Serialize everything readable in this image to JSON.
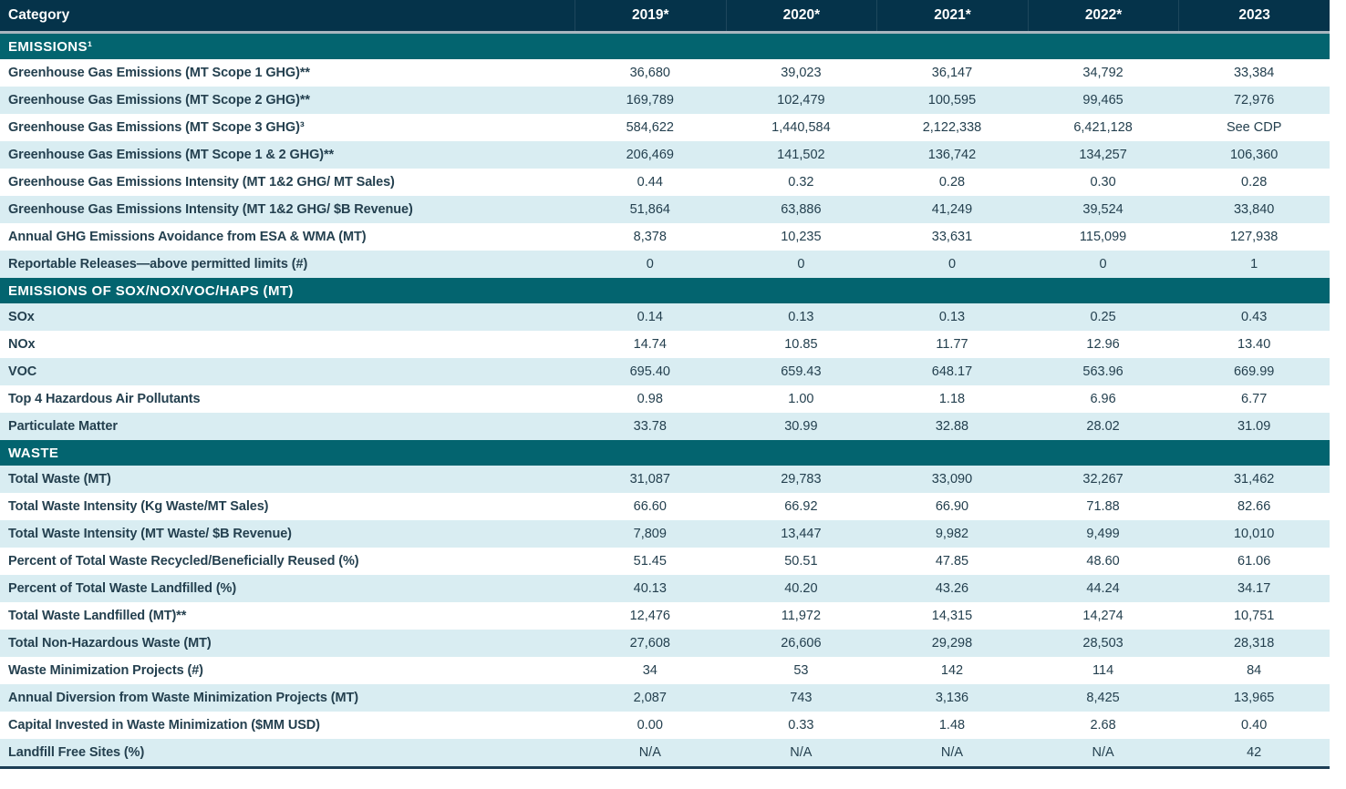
{
  "colors": {
    "header_bg": "#05334a",
    "section_bg": "#03646f",
    "stripe_bg": "#d9edf2",
    "row_text": "#24404f",
    "header_text": "#ffffff",
    "separator": "#a9b6bf",
    "bottom_border": "#1c3e55"
  },
  "table": {
    "header": {
      "category": "Category",
      "years": [
        "2019*",
        "2020*",
        "2021*",
        "2022*",
        "2023"
      ]
    },
    "sections": [
      {
        "title": "EMISSIONS¹",
        "shade_first_row": false,
        "rows": [
          {
            "label": "Greenhouse Gas Emissions (MT Scope 1 GHG)**",
            "values": [
              "36,680",
              "39,023",
              "36,147",
              "34,792",
              "33,384"
            ]
          },
          {
            "label": "Greenhouse Gas Emissions (MT Scope 2 GHG)**",
            "values": [
              "169,789",
              "102,479",
              "100,595",
              "99,465",
              "72,976"
            ]
          },
          {
            "label": "Greenhouse Gas Emissions (MT Scope 3 GHG)³",
            "values": [
              "584,622",
              "1,440,584",
              "2,122,338",
              "6,421,128",
              "See CDP"
            ]
          },
          {
            "label": "Greenhouse Gas Emissions (MT Scope 1 & 2 GHG)**",
            "values": [
              "206,469",
              "141,502",
              "136,742",
              "134,257",
              "106,360"
            ]
          },
          {
            "label": "Greenhouse Gas Emissions Intensity (MT 1&2 GHG/ MT Sales)",
            "values": [
              "0.44",
              "0.32",
              "0.28",
              "0.30",
              "0.28"
            ]
          },
          {
            "label": "Greenhouse Gas Emissions Intensity (MT 1&2 GHG/ $B Revenue)",
            "values": [
              "51,864",
              "63,886",
              "41,249",
              "39,524",
              "33,840"
            ]
          },
          {
            "label": "Annual GHG Emissions Avoidance from ESA & WMA (MT)",
            "values": [
              "8,378",
              "10,235",
              "33,631",
              "115,099",
              "127,938"
            ]
          },
          {
            "label": "Reportable Releases—above permitted limits (#)",
            "values": [
              "0",
              "0",
              "0",
              "0",
              "1"
            ]
          }
        ]
      },
      {
        "title": "EMISSIONS OF SOX/NOX/VOC/HAPS (MT)",
        "shade_first_row": true,
        "rows": [
          {
            "label": "SOx",
            "values": [
              "0.14",
              "0.13",
              "0.13",
              "0.25",
              "0.43"
            ]
          },
          {
            "label": "NOx",
            "values": [
              "14.74",
              "10.85",
              "11.77",
              "12.96",
              "13.40"
            ]
          },
          {
            "label": "VOC",
            "values": [
              "695.40",
              "659.43",
              "648.17",
              "563.96",
              "669.99"
            ]
          },
          {
            "label": "Top 4 Hazardous Air Pollutants",
            "values": [
              "0.98",
              "1.00",
              "1.18",
              "6.96",
              "6.77"
            ]
          },
          {
            "label": "Particulate Matter",
            "values": [
              "33.78",
              "30.99",
              "32.88",
              "28.02",
              "31.09"
            ]
          }
        ]
      },
      {
        "title": "WASTE",
        "shade_first_row": true,
        "rows": [
          {
            "label": "Total Waste (MT)",
            "values": [
              "31,087",
              "29,783",
              "33,090",
              "32,267",
              "31,462"
            ]
          },
          {
            "label": "Total Waste Intensity (Kg Waste/MT Sales)",
            "values": [
              "66.60",
              "66.92",
              "66.90",
              "71.88",
              "82.66"
            ]
          },
          {
            "label": "Total Waste Intensity (MT Waste/ $B Revenue)",
            "values": [
              "7,809",
              "13,447",
              "9,982",
              "9,499",
              "10,010"
            ]
          },
          {
            "label": "Percent of Total Waste Recycled/Beneficially Reused (%)",
            "values": [
              "51.45",
              "50.51",
              "47.85",
              "48.60",
              "61.06"
            ]
          },
          {
            "label": "Percent of Total Waste Landfilled (%)",
            "values": [
              "40.13",
              "40.20",
              "43.26",
              "44.24",
              "34.17"
            ]
          },
          {
            "label": "Total Waste Landfilled (MT)**",
            "values": [
              "12,476",
              "11,972",
              "14,315",
              "14,274",
              "10,751"
            ]
          },
          {
            "label": "Total Non-Hazardous Waste (MT)",
            "values": [
              "27,608",
              "26,606",
              "29,298",
              "28,503",
              "28,318"
            ]
          },
          {
            "label": "Waste Minimization Projects (#)",
            "values": [
              "34",
              "53",
              "142",
              "114",
              "84"
            ]
          },
          {
            "label": "Annual Diversion from Waste Minimization Projects (MT)",
            "values": [
              "2,087",
              "743",
              "3,136",
              "8,425",
              "13,965"
            ]
          },
          {
            "label": "Capital Invested in Waste Minimization ($MM USD)",
            "values": [
              "0.00",
              "0.33",
              "1.48",
              "2.68",
              "0.40"
            ]
          },
          {
            "label": "Landfill Free Sites (%)",
            "values": [
              "N/A",
              "N/A",
              "N/A",
              "N/A",
              "42"
            ]
          }
        ]
      }
    ]
  }
}
